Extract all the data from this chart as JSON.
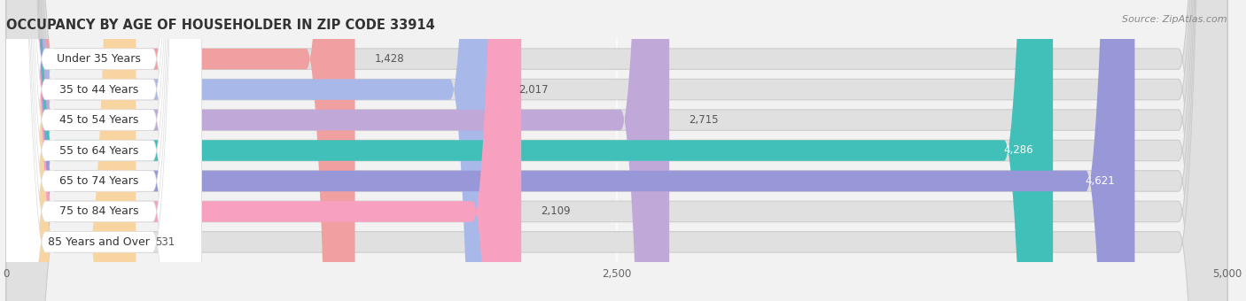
{
  "title": "OCCUPANCY BY AGE OF HOUSEHOLDER IN ZIP CODE 33914",
  "source": "Source: ZipAtlas.com",
  "categories": [
    "Under 35 Years",
    "35 to 44 Years",
    "45 to 54 Years",
    "55 to 64 Years",
    "65 to 74 Years",
    "75 to 84 Years",
    "85 Years and Over"
  ],
  "values": [
    1428,
    2017,
    2715,
    4286,
    4621,
    2109,
    531
  ],
  "bar_colors": [
    "#f0a0a0",
    "#a8b8e8",
    "#c0a8d8",
    "#40c0b8",
    "#9898d8",
    "#f8a0c0",
    "#f8d4a0"
  ],
  "label_bg_color": "#ffffff",
  "xlim": [
    0,
    5000
  ],
  "xticks": [
    0,
    2500,
    5000
  ],
  "background_color": "#f2f2f2",
  "bar_bg_color": "#e0e0e0",
  "title_fontsize": 10.5,
  "label_fontsize": 9,
  "value_fontsize": 8.5,
  "source_fontsize": 8
}
